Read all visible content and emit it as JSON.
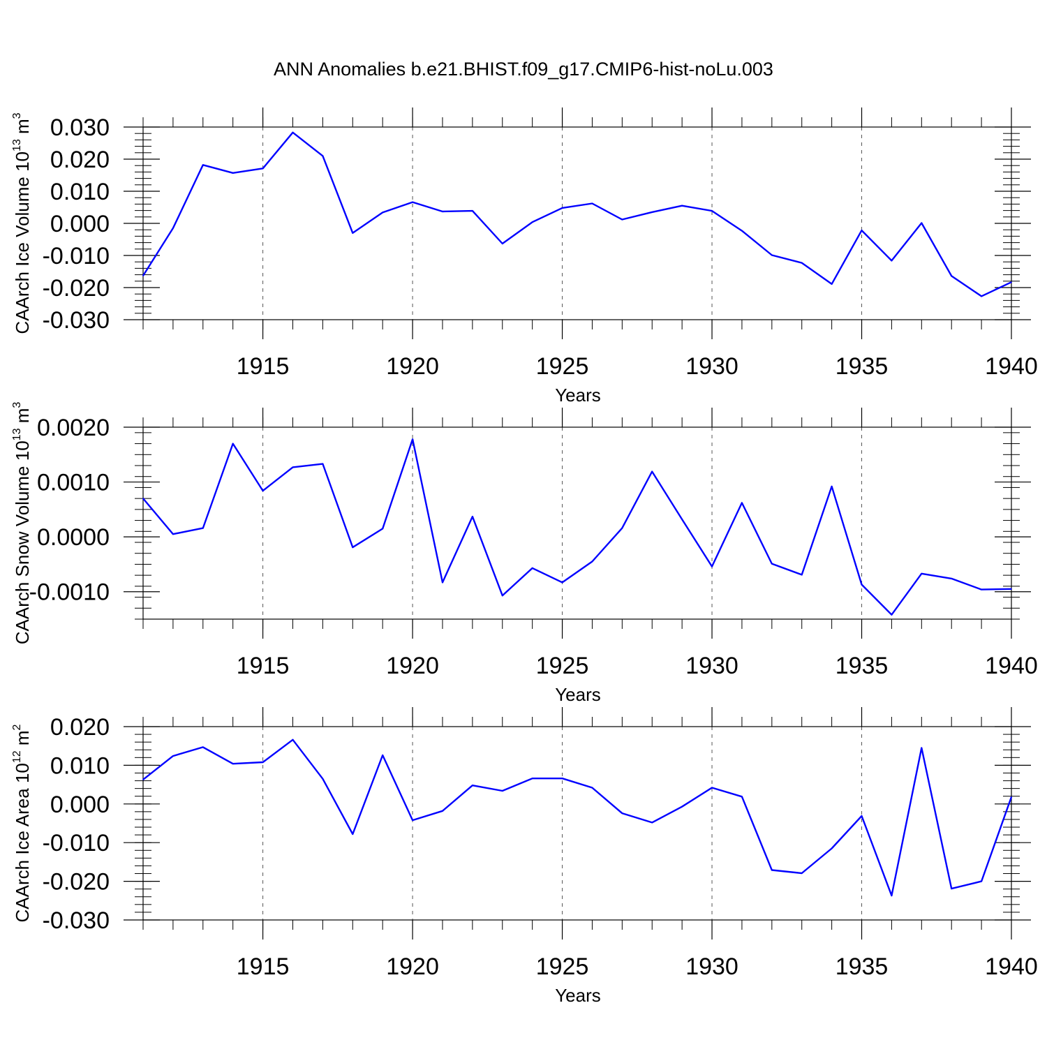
{
  "title": "ANN Anomalies b.e21.BHIST.f09_g17.CMIP6-hist-noLu.003",
  "line_color": "#0000ff",
  "chart_data": [
    {
      "type": "line",
      "name": "ice-volume",
      "ylabel": "CAArch Ice Volume 10",
      "ylabel_exp": "13",
      "ylabel_unit": "m",
      "ylabel_unit_exp": "3",
      "xlabel": "Years",
      "xlim": [
        1911,
        1940
      ],
      "ylim": [
        -0.03,
        0.03
      ],
      "yticks": [
        0.03,
        0.02,
        0.01,
        0.0,
        -0.01,
        -0.02,
        -0.03
      ],
      "ytick_labels": [
        "0.030",
        "0.020",
        "0.010",
        "0.000",
        "-0.010",
        "-0.020",
        "-0.030"
      ],
      "xticks": [
        1915,
        1920,
        1925,
        1930,
        1935,
        1940
      ],
      "xtick_labels": [
        "1915",
        "1920",
        "1925",
        "1930",
        "1935",
        "1940"
      ],
      "x": [
        1911,
        1912,
        1913,
        1914,
        1915,
        1916,
        1917,
        1918,
        1919,
        1920,
        1921,
        1922,
        1923,
        1924,
        1925,
        1926,
        1927,
        1928,
        1929,
        1930,
        1931,
        1932,
        1933,
        1934,
        1935,
        1936,
        1937,
        1938,
        1939,
        1940
      ],
      "values": [
        -0.0163,
        -0.0015,
        0.0182,
        0.0157,
        0.0171,
        0.0283,
        0.021,
        -0.003,
        0.0034,
        0.0066,
        0.0037,
        0.0039,
        -0.0063,
        0.0004,
        0.0048,
        0.0062,
        0.0012,
        0.0035,
        0.0055,
        0.0039,
        -0.0023,
        -0.0099,
        -0.0123,
        -0.0189,
        -0.0022,
        -0.0116,
        0.0001,
        -0.0164,
        -0.0227,
        -0.0183
      ]
    },
    {
      "type": "line",
      "name": "snow-volume",
      "ylabel": "CAArch Snow Volume 10",
      "ylabel_exp": "13",
      "ylabel_unit": "m",
      "ylabel_unit_exp": "3",
      "xlabel": "Years",
      "xlim": [
        1911,
        1940
      ],
      "ylim": [
        -0.0015,
        0.002
      ],
      "yticks": [
        0.002,
        0.001,
        0.0,
        -0.001
      ],
      "ytick_labels": [
        "0.0020",
        "0.0010",
        "0.0000",
        "-0.0010"
      ],
      "xticks": [
        1915,
        1920,
        1925,
        1930,
        1935,
        1940
      ],
      "xtick_labels": [
        "1915",
        "1920",
        "1925",
        "1930",
        "1935",
        "1940"
      ],
      "x": [
        1911,
        1912,
        1913,
        1914,
        1915,
        1916,
        1917,
        1918,
        1919,
        1920,
        1921,
        1922,
        1923,
        1924,
        1925,
        1926,
        1927,
        1928,
        1929,
        1930,
        1931,
        1932,
        1933,
        1934,
        1935,
        1936,
        1937,
        1938,
        1939,
        1940
      ],
      "values": [
        0.0007,
        5e-05,
        0.00016,
        0.0017,
        0.00084,
        0.00127,
        0.00133,
        -0.00019,
        0.00015,
        0.00178,
        -0.00083,
        0.00037,
        -0.00107,
        -0.00057,
        -0.00083,
        -0.00045,
        0.00016,
        0.00119,
        0.00032,
        -0.00054,
        0.00062,
        -0.00049,
        -0.00069,
        0.00092,
        -0.00087,
        -0.00142,
        -0.00067,
        -0.00076,
        -0.00096,
        -0.00095
      ]
    },
    {
      "type": "line",
      "name": "ice-area",
      "ylabel": "CAArch Ice Area 10",
      "ylabel_exp": "12",
      "ylabel_unit": "m",
      "ylabel_unit_exp": "2",
      "xlabel": "Years",
      "xlim": [
        1911,
        1940
      ],
      "ylim": [
        -0.03,
        0.02
      ],
      "yticks": [
        0.02,
        0.01,
        0.0,
        -0.01,
        -0.02,
        -0.03
      ],
      "ytick_labels": [
        "0.020",
        "0.010",
        "0.000",
        "-0.010",
        "-0.020",
        "-0.030"
      ],
      "xticks": [
        1915,
        1920,
        1925,
        1930,
        1935,
        1940
      ],
      "xtick_labels": [
        "1915",
        "1920",
        "1925",
        "1930",
        "1935",
        "1940"
      ],
      "x": [
        1911,
        1912,
        1913,
        1914,
        1915,
        1916,
        1917,
        1918,
        1919,
        1920,
        1921,
        1922,
        1923,
        1924,
        1925,
        1926,
        1927,
        1928,
        1929,
        1930,
        1931,
        1932,
        1933,
        1934,
        1935,
        1936,
        1937,
        1938,
        1939,
        1940
      ],
      "values": [
        0.0063,
        0.0124,
        0.0147,
        0.0104,
        0.0108,
        0.0166,
        0.0065,
        -0.0078,
        0.0126,
        -0.0042,
        -0.0018,
        0.0048,
        0.0034,
        0.0066,
        0.0066,
        0.0042,
        -0.0024,
        -0.0048,
        -0.0007,
        0.0042,
        0.0019,
        -0.0171,
        -0.0179,
        -0.0115,
        -0.0031,
        -0.0237,
        0.0145,
        -0.0219,
        -0.02,
        0.0018
      ]
    }
  ]
}
